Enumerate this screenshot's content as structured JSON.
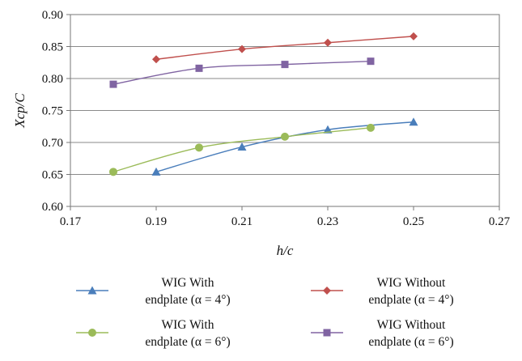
{
  "chart_data": {
    "type": "line",
    "xlabel": "h/c",
    "ylabel": "Xcp/C",
    "xlim": [
      0.17,
      0.27
    ],
    "ylim": [
      0.6,
      0.9
    ],
    "xticks": [
      "0.17",
      "0.19",
      "0.21",
      "0.23",
      "0.25",
      "0.27"
    ],
    "yticks": [
      "0.60",
      "0.65",
      "0.70",
      "0.75",
      "0.80",
      "0.85",
      "0.90"
    ],
    "grid": "horizontal",
    "legend_position": "bottom",
    "series": [
      {
        "name": "WIG With endplate (α = 4°)",
        "name_line1": "WIG With",
        "name_line2": "endplate (α = 4°)",
        "color": "#4a7ebb",
        "marker": "triangle",
        "x": [
          0.19,
          0.21,
          0.23,
          0.25
        ],
        "y": [
          0.654,
          0.693,
          0.72,
          0.732
        ]
      },
      {
        "name": "WIG Without endplate (α = 4°)",
        "name_line1": "WIG Without",
        "name_line2": "endplate (α = 4°)",
        "color": "#c0504d",
        "marker": "diamond",
        "x": [
          0.19,
          0.21,
          0.23,
          0.25
        ],
        "y": [
          0.83,
          0.846,
          0.856,
          0.866
        ]
      },
      {
        "name": "WIG With endplate (α = 6°)",
        "name_line1": "WIG With",
        "name_line2": "endplate (α = 6°)",
        "color": "#9bbb59",
        "marker": "circle",
        "x": [
          0.18,
          0.2,
          0.22,
          0.24
        ],
        "y": [
          0.654,
          0.692,
          0.709,
          0.723
        ]
      },
      {
        "name": "WIG Without endplate (α = 6°)",
        "name_line1": "WIG Without",
        "name_line2": "endplate (α = 6°)",
        "color": "#8064a2",
        "marker": "square",
        "x": [
          0.18,
          0.2,
          0.22,
          0.24
        ],
        "y": [
          0.791,
          0.816,
          0.822,
          0.827
        ]
      }
    ]
  }
}
